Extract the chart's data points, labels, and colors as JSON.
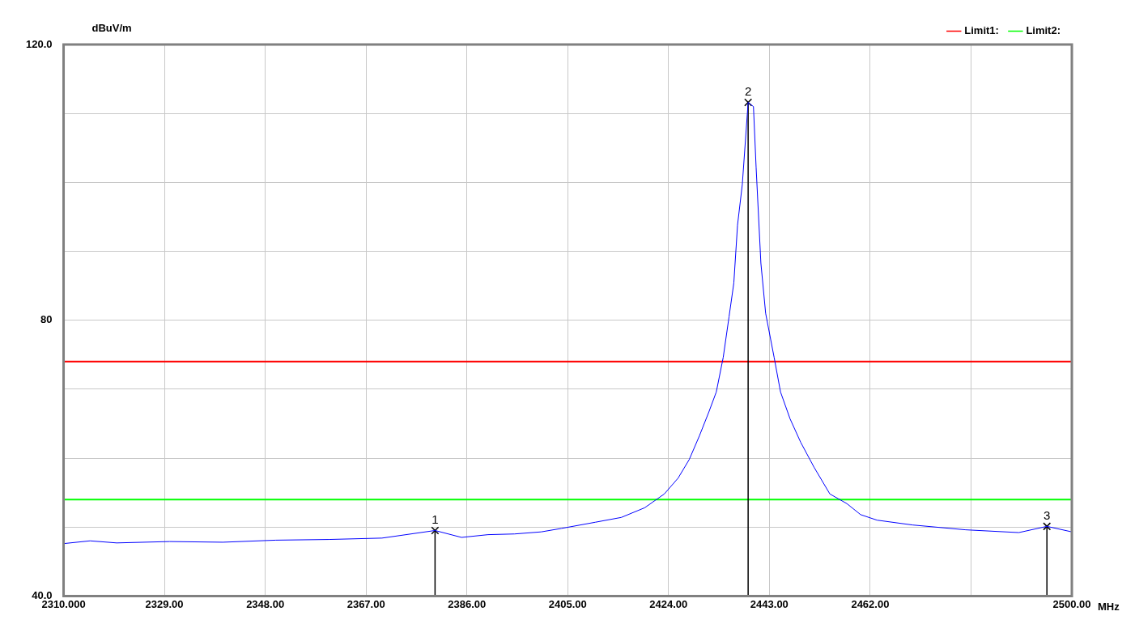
{
  "chart_data": {
    "type": "line",
    "xlabel": "MHz",
    "ylabel": "dBuV/m",
    "xlim": [
      2310,
      2500
    ],
    "ylim": [
      40,
      120
    ],
    "xticks": [
      {
        "value": 2310,
        "label": "2310.000"
      },
      {
        "value": 2329,
        "label": "2329.00"
      },
      {
        "value": 2348,
        "label": "2348.00"
      },
      {
        "value": 2367,
        "label": "2367.00"
      },
      {
        "value": 2386,
        "label": "2386.00"
      },
      {
        "value": 2405,
        "label": "2405.00"
      },
      {
        "value": 2424,
        "label": "2424.00"
      },
      {
        "value": 2443,
        "label": "2443.00"
      },
      {
        "value": 2462,
        "label": "2462.00"
      },
      {
        "value": 2481,
        "label": null
      },
      {
        "value": 2500,
        "label": "2500.00"
      }
    ],
    "yticks": [
      {
        "value": 40,
        "label": "40.0"
      },
      {
        "value": 50,
        "label": null
      },
      {
        "value": 60,
        "label": null
      },
      {
        "value": 70,
        "label": null
      },
      {
        "value": 80,
        "label": "80"
      },
      {
        "value": 90,
        "label": null
      },
      {
        "value": 100,
        "label": null
      },
      {
        "value": 110,
        "label": null
      },
      {
        "value": 120,
        "label": "120.0"
      }
    ],
    "grid": true,
    "legend": "top right",
    "marker": "none",
    "line_style": "solid",
    "series": [
      {
        "color": "#0000ff",
        "x": [
          2310,
          2315,
          2320,
          2330,
          2340,
          2350,
          2360,
          2370,
          2380,
          2385,
          2390,
          2395,
          2400,
          2403.8,
          2410.2,
          2415.1,
          2419.5,
          2423.2,
          2425.8,
          2427.9,
          2429.8,
          2431.6,
          2433.0,
          2434.3,
          2435.4,
          2436.3,
          2437.0,
          2437.9,
          2439.0,
          2440.0,
          2440.5,
          2441.4,
          2442.3,
          2443.9,
          2445.1,
          2446.9,
          2448.9,
          2451.4,
          2454.4,
          2457.6,
          2460.2,
          2463.3,
          2470,
          2480,
          2490,
          2495.3,
          2500
        ],
        "values": [
          47.6,
          48.0,
          47.7,
          47.9,
          47.8,
          48.1,
          48.2,
          48.4,
          49.5,
          48.5,
          48.9,
          49.0,
          49.3,
          49.8,
          50.7,
          51.4,
          52.8,
          54.8,
          57.1,
          59.8,
          63.2,
          66.7,
          69.6,
          74.6,
          80.5,
          85.4,
          93.8,
          99.7,
          111.6,
          111.0,
          102.2,
          88.3,
          81.0,
          74.6,
          69.6,
          65.7,
          62.3,
          58.7,
          54.8,
          53.4,
          51.8,
          51.0,
          50.3,
          49.6,
          49.2,
          50.1,
          49.3
        ]
      },
      {
        "color": "#000000",
        "marker": "cross",
        "x": [
          2380,
          2380
        ],
        "values": [
          40,
          49.5
        ]
      },
      {
        "color": "#000000",
        "marker": "cross",
        "x": [
          2439,
          2439
        ],
        "values": [
          40,
          111.6
        ]
      },
      {
        "color": "#000000",
        "marker": "cross",
        "x": [
          2495.3,
          2495.3
        ],
        "values": [
          40,
          50.1
        ]
      },
      {
        "name": "Limit1:",
        "color": "#ff0000",
        "x": [
          2310,
          2500
        ],
        "values": [
          74,
          74
        ]
      },
      {
        "name": "Limit2:",
        "color": "#00ff00",
        "x": [
          2310,
          2500
        ],
        "values": [
          54,
          54
        ]
      }
    ],
    "annotations": [
      {
        "text": "1",
        "x": 2380,
        "y": 49.5
      },
      {
        "text": "2",
        "x": 2439,
        "y": 111.6
      },
      {
        "text": "3",
        "x": 2495.3,
        "y": 50.1
      }
    ]
  }
}
